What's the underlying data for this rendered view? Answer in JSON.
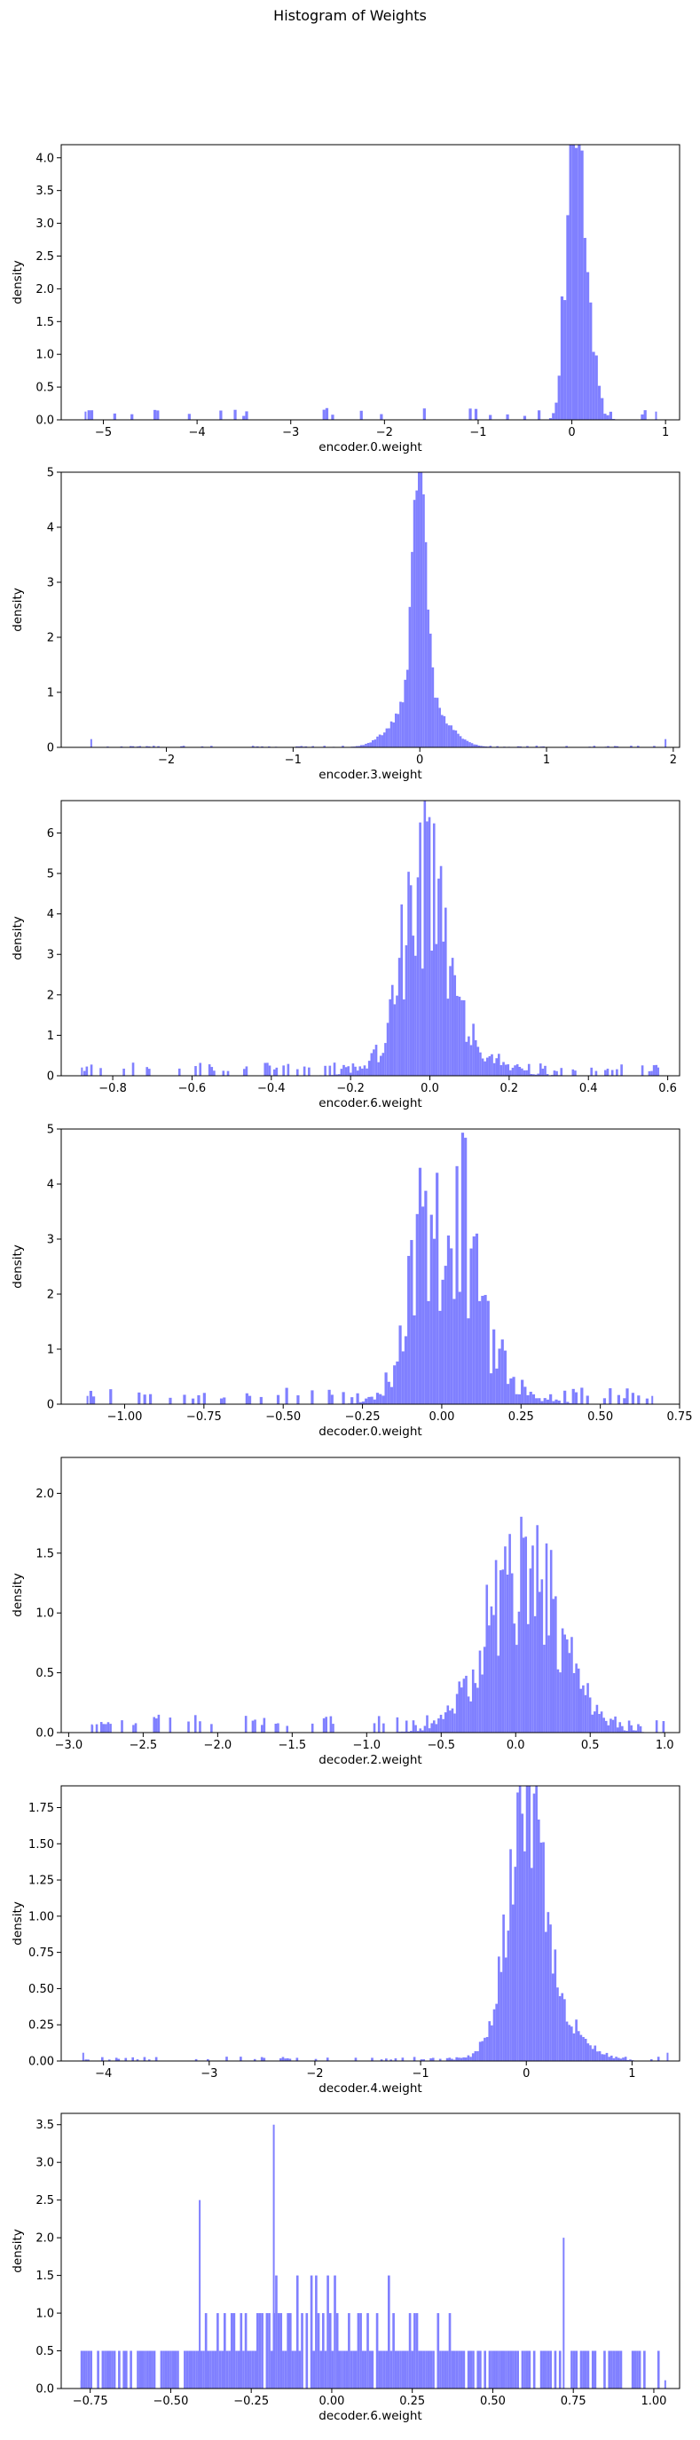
{
  "figure": {
    "title": "Histogram of Weights"
  },
  "colors": {
    "bar": "#8080ff",
    "axis": "#000000",
    "background": "#ffffff"
  },
  "chart_data": [
    {
      "type": "histogram",
      "xlabel": "encoder.0.weight",
      "ylabel": "density",
      "xlim": [
        -5.45,
        1.15
      ],
      "ylim": [
        0,
        4.2
      ],
      "xticks": [
        {
          "v": -5,
          "label": "−5"
        },
        {
          "v": -4,
          "label": "−4"
        },
        {
          "v": -3,
          "label": "−3"
        },
        {
          "v": -2,
          "label": "−2"
        },
        {
          "v": -1,
          "label": "−1"
        },
        {
          "v": 0,
          "label": "0"
        },
        {
          "v": 1,
          "label": "1"
        }
      ],
      "yticks": [
        {
          "v": 0,
          "label": "0.0"
        },
        {
          "v": 0.5,
          "label": "0.5"
        },
        {
          "v": 1,
          "label": "1.0"
        },
        {
          "v": 1.5,
          "label": "1.5"
        },
        {
          "v": 2,
          "label": "2.0"
        },
        {
          "v": 2.5,
          "label": "2.5"
        },
        {
          "v": 3,
          "label": "3.0"
        },
        {
          "v": 3.5,
          "label": "3.5"
        },
        {
          "v": 4,
          "label": "4.0"
        }
      ],
      "bin_range": [
        -5.2,
        0.92
      ],
      "bins": 200,
      "seed": 11,
      "peaks": [
        {
          "center": 0.0,
          "height": 4.05,
          "width": 0.07
        },
        {
          "center": 0.12,
          "height": 2.2,
          "width": 0.1
        }
      ],
      "noise": 0.35,
      "sparse": {
        "level": 0.12,
        "prob": 0.12
      }
    },
    {
      "type": "histogram",
      "xlabel": "encoder.3.weight",
      "ylabel": "density",
      "xlim": [
        -2.83,
        2.05
      ],
      "ylim": [
        0,
        5.0
      ],
      "xticks": [
        {
          "v": -2,
          "label": "−2"
        },
        {
          "v": -1,
          "label": "−1"
        },
        {
          "v": 0,
          "label": "0"
        },
        {
          "v": 1,
          "label": "1"
        },
        {
          "v": 2,
          "label": "2"
        }
      ],
      "yticks": [
        {
          "v": 0,
          "label": "0"
        },
        {
          "v": 1,
          "label": "1"
        },
        {
          "v": 2,
          "label": "2"
        },
        {
          "v": 3,
          "label": "3"
        },
        {
          "v": 4,
          "label": "4"
        },
        {
          "v": 5,
          "label": "5"
        }
      ],
      "bin_range": [
        -2.6,
        1.95
      ],
      "bins": 250,
      "seed": 23,
      "peaks": [
        {
          "center": 0.0,
          "height": 4.75,
          "width": 0.05
        },
        {
          "center": 0.0,
          "height": 1.0,
          "width": 0.18
        }
      ],
      "noise": 0.15,
      "sparse": {
        "level": 0.02,
        "prob": 0.25
      }
    },
    {
      "type": "histogram",
      "xlabel": "encoder.6.weight",
      "ylabel": "density",
      "xlim": [
        -0.93,
        0.63
      ],
      "ylim": [
        0,
        6.8
      ],
      "xticks": [
        {
          "v": -0.8,
          "label": "−0.8"
        },
        {
          "v": -0.6,
          "label": "−0.6"
        },
        {
          "v": -0.4,
          "label": "−0.4"
        },
        {
          "v": -0.2,
          "label": "−0.2"
        },
        {
          "v": 0,
          "label": "0.0"
        },
        {
          "v": 0.2,
          "label": "0.2"
        },
        {
          "v": 0.4,
          "label": "0.4"
        },
        {
          "v": 0.6,
          "label": "0.6"
        }
      ],
      "yticks": [
        {
          "v": 0,
          "label": "0"
        },
        {
          "v": 1,
          "label": "1"
        },
        {
          "v": 2,
          "label": "2"
        },
        {
          "v": 3,
          "label": "3"
        },
        {
          "v": 4,
          "label": "4"
        },
        {
          "v": 5,
          "label": "5"
        },
        {
          "v": 6,
          "label": "6"
        }
      ],
      "bin_range": [
        -0.88,
        0.58
      ],
      "bins": 250,
      "seed": 37,
      "peaks": [
        {
          "center": -0.02,
          "height": 4.3,
          "width": 0.05
        },
        {
          "center": 0.03,
          "height": 1.0,
          "width": 0.1
        }
      ],
      "noise": 0.55,
      "sparse": {
        "level": 0.22,
        "prob": 0.3
      }
    },
    {
      "type": "histogram",
      "xlabel": "decoder.0.weight",
      "ylabel": "density",
      "xlim": [
        -1.2,
        0.75
      ],
      "ylim": [
        0,
        5.0
      ],
      "xticks": [
        {
          "v": -1,
          "label": "−1.00"
        },
        {
          "v": -0.75,
          "label": "−0.75"
        },
        {
          "v": -0.5,
          "label": "−0.50"
        },
        {
          "v": -0.25,
          "label": "−0.25"
        },
        {
          "v": 0,
          "label": "0.00"
        },
        {
          "v": 0.25,
          "label": "0.25"
        },
        {
          "v": 0.5,
          "label": "0.50"
        },
        {
          "v": 0.75,
          "label": "0.75"
        }
      ],
      "yticks": [
        {
          "v": 0,
          "label": "0"
        },
        {
          "v": 1,
          "label": "1"
        },
        {
          "v": 2,
          "label": "2"
        },
        {
          "v": 3,
          "label": "3"
        },
        {
          "v": 4,
          "label": "4"
        },
        {
          "v": 5,
          "label": "5"
        }
      ],
      "bin_range": [
        -1.12,
        0.67
      ],
      "bins": 200,
      "seed": 41,
      "peaks": [
        {
          "center": 0.0,
          "height": 3.3,
          "width": 0.08
        },
        {
          "center": 0.08,
          "height": 0.9,
          "width": 0.12
        }
      ],
      "noise": 0.6,
      "sparse": {
        "level": 0.2,
        "prob": 0.28
      }
    },
    {
      "type": "histogram",
      "xlabel": "decoder.2.weight",
      "ylabel": "density",
      "xlim": [
        -3.05,
        1.1
      ],
      "ylim": [
        0,
        2.3
      ],
      "xticks": [
        {
          "v": -3,
          "label": "−3.0"
        },
        {
          "v": -2.5,
          "label": "−2.5"
        },
        {
          "v": -2,
          "label": "−2.0"
        },
        {
          "v": -1.5,
          "label": "−1.5"
        },
        {
          "v": -1,
          "label": "−1.0"
        },
        {
          "v": -0.5,
          "label": "−0.5"
        },
        {
          "v": 0,
          "label": "0.0"
        },
        {
          "v": 0.5,
          "label": "0.5"
        },
        {
          "v": 1,
          "label": "1.0"
        }
      ],
      "yticks": [
        {
          "v": 0,
          "label": "0.0"
        },
        {
          "v": 0.5,
          "label": "0.5"
        },
        {
          "v": 1,
          "label": "1.0"
        },
        {
          "v": 1.5,
          "label": "1.5"
        },
        {
          "v": 2,
          "label": "2.0"
        }
      ],
      "bin_range": [
        -2.85,
        1.0
      ],
      "bins": 250,
      "seed": 53,
      "peaks": [
        {
          "center": 0.05,
          "height": 1.35,
          "width": 0.25
        }
      ],
      "noise": 0.5,
      "sparse": {
        "level": 0.1,
        "prob": 0.22
      }
    },
    {
      "type": "histogram",
      "xlabel": "decoder.4.weight",
      "ylabel": "density",
      "xlim": [
        -4.4,
        1.45
      ],
      "ylim": [
        0,
        1.9
      ],
      "xticks": [
        {
          "v": -4,
          "label": "−4"
        },
        {
          "v": -3,
          "label": "−3"
        },
        {
          "v": -2,
          "label": "−2"
        },
        {
          "v": -1,
          "label": "−1"
        },
        {
          "v": 0,
          "label": "0"
        },
        {
          "v": 1,
          "label": "1"
        }
      ],
      "yticks": [
        {
          "v": 0,
          "label": "0.00"
        },
        {
          "v": 0.25,
          "label": "0.25"
        },
        {
          "v": 0.5,
          "label": "0.50"
        },
        {
          "v": 0.75,
          "label": "0.75"
        },
        {
          "v": 1,
          "label": "1.00"
        },
        {
          "v": 1.25,
          "label": "1.25"
        },
        {
          "v": 1.5,
          "label": "1.50"
        },
        {
          "v": 1.75,
          "label": "1.75"
        }
      ],
      "bin_range": [
        -4.2,
        1.35
      ],
      "bins": 250,
      "seed": 67,
      "peaks": [
        {
          "center": 0.0,
          "height": 1.5,
          "width": 0.17
        },
        {
          "center": 0.15,
          "height": 0.35,
          "width": 0.3
        }
      ],
      "noise": 0.3,
      "sparse": {
        "level": 0.02,
        "prob": 0.25
      }
    },
    {
      "type": "histogram",
      "xlabel": "decoder.6.weight",
      "ylabel": "density",
      "xlim": [
        -0.84,
        1.08
      ],
      "ylim": [
        0,
        3.65
      ],
      "xticks": [
        {
          "v": -0.75,
          "label": "−0.75"
        },
        {
          "v": -0.5,
          "label": "−0.50"
        },
        {
          "v": -0.25,
          "label": "−0.25"
        },
        {
          "v": 0,
          "label": "0.00"
        },
        {
          "v": 0.25,
          "label": "0.25"
        },
        {
          "v": 0.5,
          "label": "0.50"
        },
        {
          "v": 0.75,
          "label": "0.75"
        },
        {
          "v": 1,
          "label": "1.00"
        }
      ],
      "yticks": [
        {
          "v": 0,
          "label": "0.0"
        },
        {
          "v": 0.5,
          "label": "0.5"
        },
        {
          "v": 1,
          "label": "1.0"
        },
        {
          "v": 1.5,
          "label": "1.5"
        },
        {
          "v": 2,
          "label": "2.0"
        },
        {
          "v": 2.5,
          "label": "2.5"
        },
        {
          "v": 3,
          "label": "3.0"
        },
        {
          "v": 3.5,
          "label": "3.5"
        }
      ],
      "bin_range": [
        -0.78,
        1.04
      ],
      "bins": 250,
      "seed": 79,
      "peaks": [
        {
          "center": 0.0,
          "height": 0.85,
          "width": 0.35
        }
      ],
      "noise": 0.9,
      "quantum": 0.5,
      "sparse": {
        "level": 0.5,
        "prob": 0.65
      },
      "spikes": [
        {
          "x": -0.18,
          "h": 3.5
        },
        {
          "x": -0.41,
          "h": 2.5
        },
        {
          "x": 0.72,
          "h": 2.0
        }
      ]
    }
  ]
}
